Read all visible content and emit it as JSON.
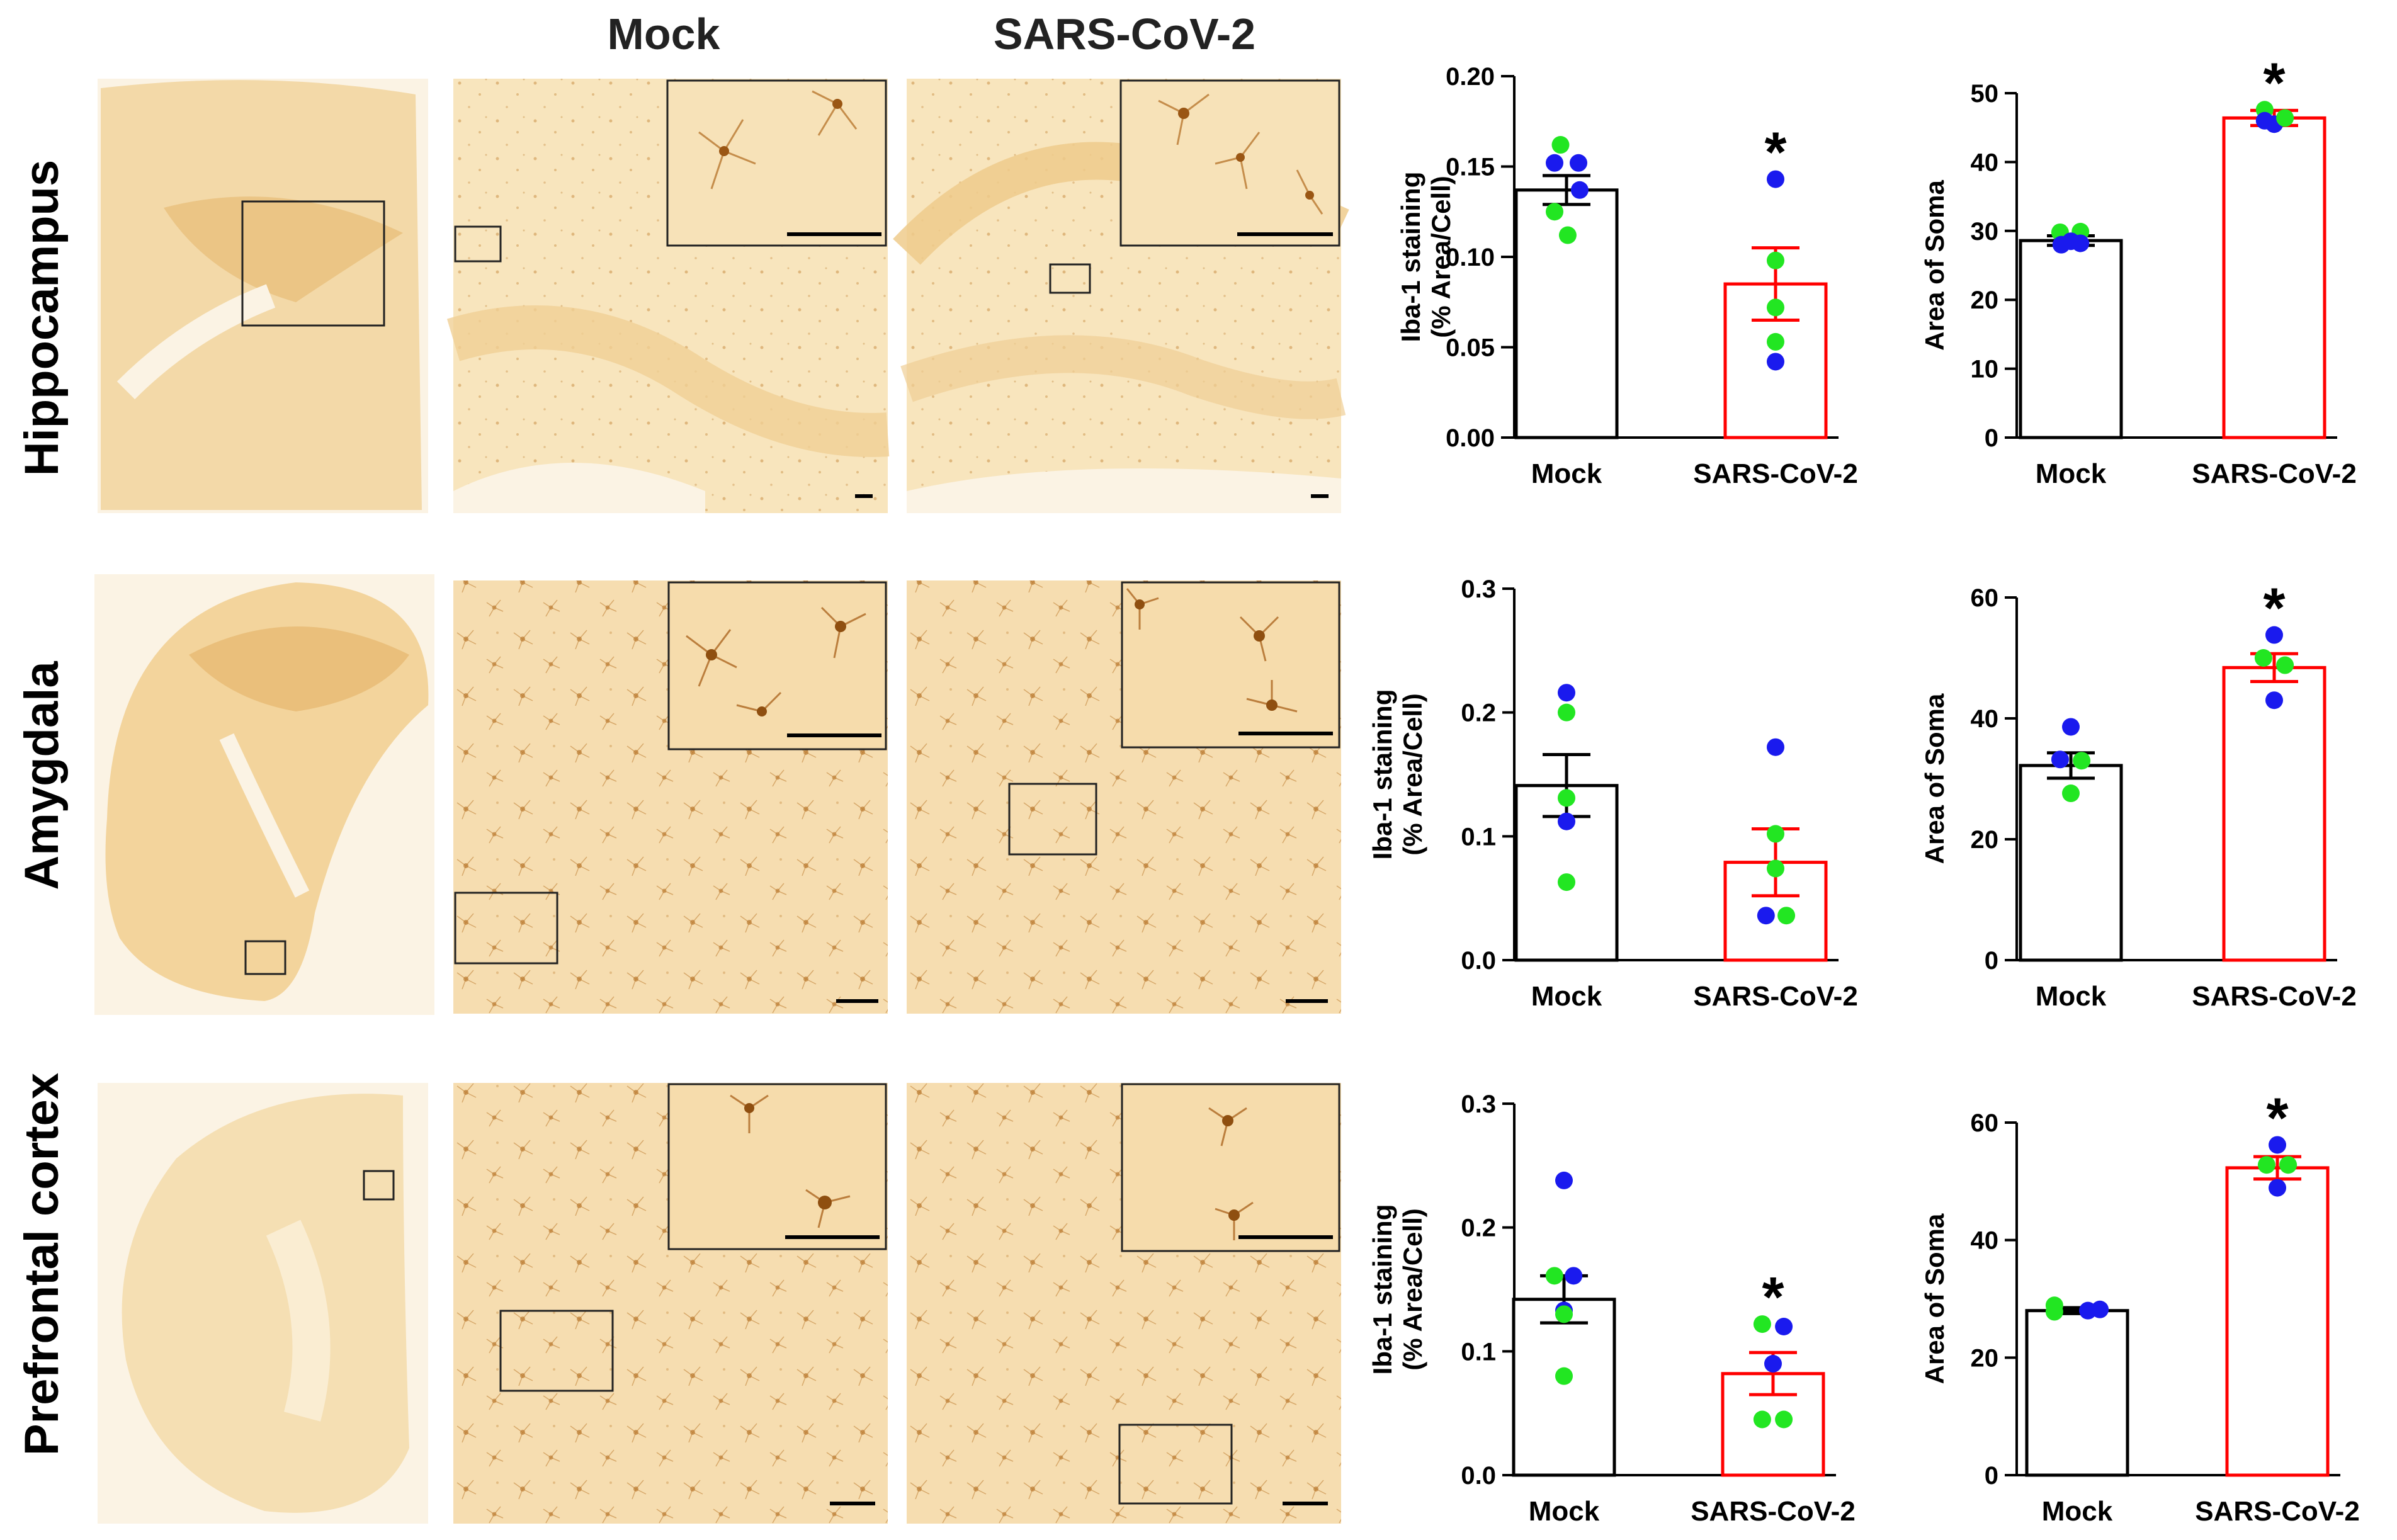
{
  "column_headers": {
    "mock": "Mock",
    "sars": "SARS-CoV-2"
  },
  "rows": [
    {
      "label": "Hippocampus"
    },
    {
      "label": "Amygdala"
    },
    {
      "label": "Prefrontal cortex"
    }
  ],
  "colors": {
    "mock_bar": "#000000",
    "sars_bar": "#ff0000",
    "point_green": "#22e622",
    "point_blue": "#1a1aee",
    "tissue_bg": "#f7e6c2",
    "tissue_dark": "#e8c285",
    "stain": "#b8762a"
  },
  "chart_data": [
    {
      "type": "bar",
      "id": "hip-iba",
      "ylabel": [
        "Iba-1 staining",
        "(% Area/Cell)"
      ],
      "ylim": [
        0,
        0.2
      ],
      "yticks": [
        "0.00",
        "0.05",
        "0.10",
        "0.15",
        "0.20"
      ],
      "categories": [
        "Mock",
        "SARS-CoV-2"
      ],
      "means": [
        0.137,
        0.085
      ],
      "sem": [
        0.008,
        0.02
      ],
      "sig": [
        "",
        "*"
      ],
      "points": [
        [
          {
            "v": 0.162,
            "c": "green",
            "dx": -0.25
          },
          {
            "v": 0.152,
            "c": "blue",
            "dx": -0.5
          },
          {
            "v": 0.152,
            "c": "blue",
            "dx": 0.5
          },
          {
            "v": 0.137,
            "c": "blue",
            "dx": 0.55
          },
          {
            "v": 0.125,
            "c": "green",
            "dx": -0.5
          },
          {
            "v": 0.112,
            "c": "green",
            "dx": 0.05
          }
        ],
        [
          {
            "v": 0.143,
            "c": "blue",
            "dx": 0
          },
          {
            "v": 0.098,
            "c": "green",
            "dx": 0
          },
          {
            "v": 0.072,
            "c": "green",
            "dx": 0
          },
          {
            "v": 0.053,
            "c": "green",
            "dx": 0
          },
          {
            "v": 0.042,
            "c": "blue",
            "dx": 0
          }
        ]
      ]
    },
    {
      "type": "bar",
      "id": "hip-soma",
      "ylabel": [
        "Area of Soma"
      ],
      "ylim": [
        0,
        50
      ],
      "yticks": [
        "0",
        "10",
        "20",
        "30",
        "40",
        "50"
      ],
      "categories": [
        "Mock",
        "SARS-CoV-2"
      ],
      "means": [
        28.6,
        46.4
      ],
      "sem": [
        0.7,
        1.1
      ],
      "sig": [
        "",
        "*"
      ],
      "points": [
        [
          {
            "v": 29.8,
            "c": "green",
            "dx": -0.45
          },
          {
            "v": 29.9,
            "c": "green",
            "dx": 0.4
          },
          {
            "v": 28.5,
            "c": "blue",
            "dx": 0
          },
          {
            "v": 28.0,
            "c": "blue",
            "dx": -0.4
          },
          {
            "v": 28.2,
            "c": "blue",
            "dx": 0.4
          }
        ],
        [
          {
            "v": 47.6,
            "c": "green",
            "dx": -0.4
          },
          {
            "v": 46.0,
            "c": "blue",
            "dx": -0.4
          },
          {
            "v": 45.5,
            "c": "blue",
            "dx": 0
          },
          {
            "v": 46.4,
            "c": "green",
            "dx": 0.45
          }
        ]
      ]
    },
    {
      "type": "bar",
      "id": "amy-iba",
      "ylabel": [
        "Iba-1 staining",
        "(% Area/Cell)"
      ],
      "ylim": [
        0,
        0.3
      ],
      "yticks": [
        "0.0",
        "0.1",
        "0.2",
        "0.3"
      ],
      "categories": [
        "Mock",
        "SARS-CoV-2"
      ],
      "means": [
        0.141,
        0.079
      ],
      "sem": [
        0.025,
        0.027
      ],
      "sig": [
        "",
        ""
      ],
      "points": [
        [
          {
            "v": 0.216,
            "c": "blue",
            "dx": 0
          },
          {
            "v": 0.2,
            "c": "green",
            "dx": 0
          },
          {
            "v": 0.131,
            "c": "green",
            "dx": 0
          },
          {
            "v": 0.112,
            "c": "blue",
            "dx": 0
          },
          {
            "v": 0.063,
            "c": "green",
            "dx": 0
          }
        ],
        [
          {
            "v": 0.172,
            "c": "blue",
            "dx": 0
          },
          {
            "v": 0.102,
            "c": "green",
            "dx": 0
          },
          {
            "v": 0.074,
            "c": "green",
            "dx": 0
          },
          {
            "v": 0.036,
            "c": "blue",
            "dx": -0.4
          },
          {
            "v": 0.036,
            "c": "green",
            "dx": 0.45
          }
        ]
      ]
    },
    {
      "type": "bar",
      "id": "amy-soma",
      "ylabel": [
        "Area of Soma"
      ],
      "ylim": [
        0,
        60
      ],
      "yticks": [
        "0",
        "20",
        "40",
        "60"
      ],
      "categories": [
        "Mock",
        "SARS-CoV-2"
      ],
      "means": [
        32.2,
        48.4
      ],
      "sem": [
        2.1,
        2.3
      ],
      "sig": [
        "",
        "*"
      ],
      "points": [
        [
          {
            "v": 38.6,
            "c": "blue",
            "dx": 0
          },
          {
            "v": 33.2,
            "c": "blue",
            "dx": -0.45
          },
          {
            "v": 33.0,
            "c": "green",
            "dx": 0.45
          },
          {
            "v": 27.6,
            "c": "green",
            "dx": 0
          }
        ],
        [
          {
            "v": 53.8,
            "c": "blue",
            "dx": 0
          },
          {
            "v": 50.0,
            "c": "green",
            "dx": -0.45
          },
          {
            "v": 48.8,
            "c": "green",
            "dx": 0.45
          },
          {
            "v": 43.0,
            "c": "blue",
            "dx": 0
          }
        ]
      ]
    },
    {
      "type": "bar",
      "id": "pfc-iba",
      "ylabel": [
        "Iba-1 staining",
        "(% Area/Cell)"
      ],
      "ylim": [
        0,
        0.3
      ],
      "yticks": [
        "0.0",
        "0.1",
        "0.2",
        "0.3"
      ],
      "categories": [
        "Mock",
        "SARS-CoV-2"
      ],
      "means": [
        0.142,
        0.082
      ],
      "sem": [
        0.019,
        0.017
      ],
      "sig": [
        "",
        "*"
      ],
      "points": [
        [
          {
            "v": 0.238,
            "c": "blue",
            "dx": 0
          },
          {
            "v": 0.161,
            "c": "green",
            "dx": -0.4
          },
          {
            "v": 0.161,
            "c": "blue",
            "dx": 0.4
          },
          {
            "v": 0.133,
            "c": "blue",
            "dx": 0
          },
          {
            "v": 0.13,
            "c": "green",
            "dx": 0
          },
          {
            "v": 0.08,
            "c": "green",
            "dx": 0
          }
        ],
        [
          {
            "v": 0.122,
            "c": "green",
            "dx": -0.45
          },
          {
            "v": 0.12,
            "c": "blue",
            "dx": 0.45
          },
          {
            "v": 0.09,
            "c": "blue",
            "dx": 0
          },
          {
            "v": 0.045,
            "c": "green",
            "dx": -0.45
          },
          {
            "v": 0.045,
            "c": "green",
            "dx": 0.45
          }
        ]
      ]
    },
    {
      "type": "bar",
      "id": "pfc-soma",
      "ylabel": [
        "Area of Soma"
      ],
      "ylim": [
        0,
        60
      ],
      "yticks": [
        "0",
        "20",
        "40",
        "60"
      ],
      "categories": [
        "Mock",
        "SARS-CoV-2"
      ],
      "means": [
        28.0,
        52.3
      ],
      "sem": [
        0.5,
        1.9
      ],
      "sig": [
        "",
        "*"
      ],
      "points": [
        [
          {
            "v": 28.9,
            "c": "green",
            "dx": -0.95
          },
          {
            "v": 27.8,
            "c": "green",
            "dx": -0.95
          },
          {
            "v": 28.0,
            "c": "blue",
            "dx": 0.45
          },
          {
            "v": 28.2,
            "c": "blue",
            "dx": 0.95
          }
        ],
        [
          {
            "v": 56.2,
            "c": "blue",
            "dx": 0
          },
          {
            "v": 52.8,
            "c": "green",
            "dx": -0.45
          },
          {
            "v": 52.8,
            "c": "green",
            "dx": 0.45
          },
          {
            "v": 48.9,
            "c": "blue",
            "dx": 0
          }
        ]
      ]
    }
  ]
}
